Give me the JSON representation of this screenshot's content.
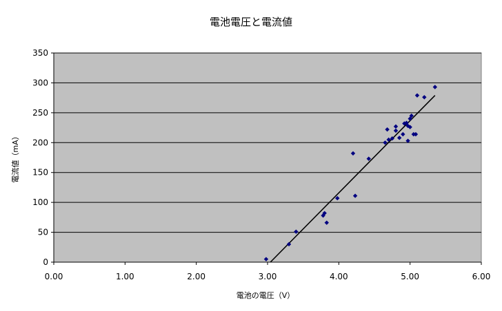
{
  "chart_data": {
    "type": "scatter",
    "title": "電池電圧と電流値",
    "xlabel": "電池の電圧（V）",
    "ylabel": "電流値（mA）",
    "xlim": [
      0,
      6
    ],
    "ylim": [
      0,
      350
    ],
    "x_ticks": [
      "0.00",
      "1.00",
      "2.00",
      "3.00",
      "4.00",
      "5.00",
      "6.00"
    ],
    "y_ticks": [
      "0",
      "50",
      "100",
      "150",
      "200",
      "250",
      "300",
      "350"
    ],
    "grid": "horizontal",
    "legend": "none",
    "plot_background": "#c0c0c0",
    "marker_color": "#000080",
    "line_color": "#000000",
    "series": [
      {
        "points": [
          [
            2.98,
            5
          ],
          [
            3.3,
            30
          ],
          [
            3.4,
            51
          ],
          [
            3.78,
            78
          ],
          [
            3.8,
            82
          ],
          [
            3.83,
            66
          ],
          [
            3.98,
            107
          ],
          [
            4.2,
            182
          ],
          [
            4.23,
            111
          ],
          [
            4.42,
            173
          ],
          [
            4.65,
            200
          ],
          [
            4.68,
            222
          ],
          [
            4.7,
            205
          ],
          [
            4.75,
            207
          ],
          [
            4.8,
            220
          ],
          [
            4.8,
            227
          ],
          [
            4.85,
            208
          ],
          [
            4.9,
            214
          ],
          [
            4.92,
            232
          ],
          [
            4.95,
            233
          ],
          [
            4.97,
            203
          ],
          [
            4.97,
            228
          ],
          [
            5.0,
            240
          ],
          [
            5.0,
            226
          ],
          [
            5.02,
            245
          ],
          [
            5.05,
            214
          ],
          [
            5.08,
            214
          ],
          [
            5.1,
            279
          ],
          [
            5.2,
            276
          ],
          [
            5.35,
            293
          ]
        ]
      }
    ],
    "trendline": {
      "x": [
        3.04,
        5.35
      ],
      "y": [
        0,
        279
      ]
    }
  }
}
